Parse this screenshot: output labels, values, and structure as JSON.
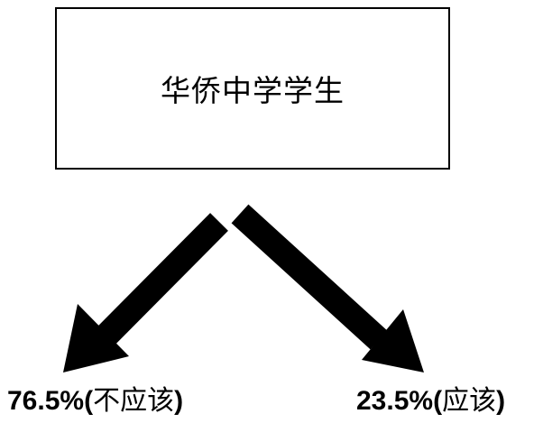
{
  "title": "华侨中学学生",
  "branches": [
    {
      "percent": "76.5%",
      "answer": "不应该"
    },
    {
      "percent": "23.5%",
      "answer": "应该"
    }
  ],
  "colors": {
    "stroke": "#000000",
    "background": "#ffffff"
  },
  "icons": [
    "arrow-down-left-icon",
    "arrow-down-right-icon"
  ]
}
